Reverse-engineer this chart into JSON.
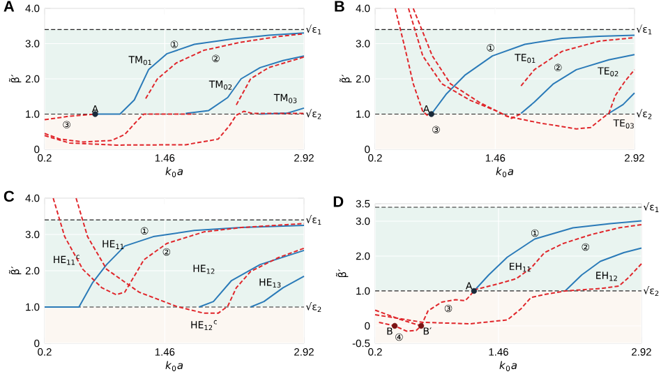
{
  "chart_data": [
    {
      "type": "line",
      "title": "A",
      "xlabel": "*k*$_{0}$*a*",
      "ylabel": "β̃′",
      "xlim": [
        0.2,
        2.92
      ],
      "ylim": [
        0,
        4
      ],
      "xticks": [
        0.2,
        1.46,
        2.92
      ],
      "yticks": [
        0,
        {
          "value": 1,
          "label": "1.0"
        },
        {
          "value": 2,
          "label": "2.0"
        },
        {
          "value": 3,
          "label": "3.0"
        },
        {
          "value": 4,
          "label": "4.0"
        }
      ],
      "grid": true,
      "bands": [
        {
          "axis": "y",
          "from": 0,
          "to": 1,
          "color": "#fcf7f2"
        },
        {
          "axis": "y",
          "from": 1,
          "to": 3.4,
          "color": "#e9f4f0"
        }
      ],
      "ref_lines": [
        {
          "axis": "y",
          "value": 3.4,
          "label": "√ε$_{1}$",
          "line_style": "dashed",
          "color": "#222222"
        },
        {
          "axis": "y",
          "value": 1,
          "label": "√ε$_{2}$",
          "line_style": "dashed",
          "color": "#222222"
        }
      ],
      "series": [
        {
          "color": "#2a7ab8",
          "line_style": "solid",
          "x": [
            0.73,
            0.99,
            1.14,
            1.29,
            1.48,
            1.77,
            2.16,
            2.55,
            2.92
          ],
          "values": [
            1.0,
            1.0,
            1.4,
            2.26,
            2.71,
            2.98,
            3.13,
            3.24,
            3.3
          ]
        },
        {
          "color": "#2a7ab8",
          "line_style": "solid",
          "x": [
            1.68,
            1.92,
            2.12,
            2.26,
            2.46,
            2.7,
            2.92
          ],
          "values": [
            1.02,
            1.1,
            1.47,
            2.0,
            2.32,
            2.52,
            2.65
          ]
        },
        {
          "color": "#2a7ab8",
          "line_style": "solid",
          "x": [
            2.46,
            2.75,
            2.92
          ],
          "values": [
            1.0,
            1.03,
            1.17
          ]
        },
        {
          "color": "#e0262b",
          "line_style": "dashed",
          "x": [
            1.26,
            1.38,
            1.58,
            1.87,
            2.26,
            2.65,
            2.92
          ],
          "values": [
            1.44,
            1.99,
            2.45,
            2.81,
            3.04,
            3.2,
            3.28
          ]
        },
        {
          "color": "#e0262b",
          "line_style": "dashed",
          "x": [
            2.21,
            2.36,
            2.55,
            2.92
          ],
          "values": [
            1.26,
            2.0,
            2.32,
            2.62
          ]
        },
        {
          "color": "#e0262b",
          "line_style": "dashed",
          "x": [
            0.2,
            0.46,
            0.73
          ],
          "values": [
            0.84,
            0.94,
            1.0
          ]
        },
        {
          "color": "#e0262b",
          "line_style": "dashed",
          "x": [
            0.2,
            0.36,
            0.6,
            0.9,
            1.04,
            1.17,
            1.24,
            1.77
          ],
          "values": [
            0.45,
            0.29,
            0.21,
            0.25,
            0.42,
            0.81,
            1.0,
            1.0
          ]
        },
        {
          "color": "#e0262b",
          "line_style": "dashed",
          "x": [
            0.2,
            0.46,
            0.95,
            1.68,
            2.02,
            2.14,
            2.21,
            2.29,
            2.38,
            2.92
          ],
          "values": [
            0.39,
            0.18,
            0.12,
            0.13,
            0.29,
            0.68,
            0.97,
            1.08,
            1.02,
            1.02
          ]
        },
        {
          "type": "scatter",
          "marker": "circle",
          "color": "#1a2a3a",
          "x": [
            0.73
          ],
          "values": [
            1.0
          ]
        }
      ],
      "annotations": [
        {
          "text": "A",
          "x": 0.73,
          "y": 1.0
        },
        "①",
        "②",
        "③",
        "TM$_{01}$",
        "TM$_{02}$",
        "TM$_{03}$"
      ]
    },
    {
      "type": "line",
      "title": "B",
      "xlabel": "*k*$_{0}$*a*",
      "ylabel": "β̃′",
      "xlim": [
        0.2,
        2.92
      ],
      "ylim": [
        0,
        4
      ],
      "xticks": [
        0.2,
        1.46,
        2.92
      ],
      "yticks": [
        0,
        {
          "value": 1,
          "label": "1.0"
        },
        {
          "value": 2,
          "label": "2.0"
        },
        {
          "value": 3,
          "label": "3.0"
        },
        {
          "value": 4,
          "label": "4.0"
        }
      ],
      "grid": true,
      "bands": [
        {
          "axis": "y",
          "from": 0,
          "to": 1,
          "color": "#fcf7f2"
        },
        {
          "axis": "y",
          "from": 1,
          "to": 3.4,
          "color": "#e9f4f0"
        }
      ],
      "ref_lines": [
        {
          "axis": "y",
          "value": 3.4,
          "label": "√ε$_{1}$",
          "line_style": "dashed",
          "color": "#222222"
        },
        {
          "axis": "y",
          "value": 1,
          "label": "√ε$_{2}$",
          "line_style": "dashed",
          "color": "#222222"
        }
      ],
      "series": [
        {
          "color": "#2a7ab8",
          "line_style": "solid",
          "x": [
            0.79,
            0.95,
            1.14,
            1.43,
            1.77,
            2.16,
            2.55,
            2.92
          ],
          "values": [
            1.0,
            1.58,
            2.1,
            2.65,
            2.98,
            3.15,
            3.21,
            3.24
          ]
        },
        {
          "color": "#2a7ab8",
          "line_style": "solid",
          "x": [
            1.73,
            1.87,
            2.07,
            2.31,
            2.65,
            2.92
          ],
          "values": [
            1.02,
            1.34,
            1.86,
            2.26,
            2.54,
            2.69
          ]
        },
        {
          "color": "#2a7ab8",
          "line_style": "solid",
          "x": [
            2.65,
            2.8,
            2.92
          ],
          "values": [
            1.02,
            1.27,
            1.6
          ]
        },
        {
          "color": "#e0262b",
          "line_style": "dashed",
          "x": [
            1.73,
            1.87,
            2.16,
            2.55,
            2.92
          ],
          "values": [
            1.8,
            2.26,
            2.78,
            3.07,
            3.17
          ]
        },
        {
          "color": "#e0262b",
          "line_style": "dashed",
          "x": [
            2.65,
            2.72,
            2.82,
            2.92
          ],
          "values": [
            1.01,
            1.53,
            1.93,
            2.26
          ]
        },
        {
          "color": "#e0262b",
          "line_style": "dashed",
          "x": [
            0.41,
            0.51,
            0.6,
            0.7,
            0.76,
            0.79
          ],
          "values": [
            4.0,
            2.91,
            1.86,
            1.07,
            0.94,
            1.0
          ]
        },
        {
          "color": "#e0262b",
          "line_style": "dashed",
          "x": [
            0.55,
            0.7,
            0.9,
            1.19,
            1.48,
            1.63,
            1.73
          ],
          "values": [
            4.0,
            2.65,
            1.86,
            1.4,
            1.08,
            0.88,
            1.01
          ]
        },
        {
          "color": "#e0262b",
          "line_style": "dashed",
          "x": [
            0.6,
            0.8,
            0.99,
            1.29,
            1.58,
            1.92,
            2.31,
            2.46,
            2.58,
            2.65
          ],
          "values": [
            4.0,
            2.65,
            1.86,
            1.34,
            0.94,
            0.75,
            0.58,
            0.62,
            0.88,
            1.02
          ]
        },
        {
          "type": "scatter",
          "marker": "circle",
          "color": "#1a2a3a",
          "x": [
            0.79
          ],
          "values": [
            1.0
          ]
        }
      ],
      "annotations": [
        {
          "text": "A",
          "x": 0.79,
          "y": 1.0
        },
        "①",
        "②",
        "③",
        "TE$_{01}$",
        "TE$_{02}$",
        "TE$_{03}$"
      ]
    },
    {
      "type": "line",
      "title": "C",
      "xlabel": "*k*$_{0}$*a*",
      "ylabel": "β̃′",
      "xlim": [
        0.2,
        2.92
      ],
      "ylim": [
        0,
        4
      ],
      "xticks": [
        0.2,
        1.46,
        2.92
      ],
      "yticks": [
        0,
        {
          "value": 1,
          "label": "1.0"
        },
        {
          "value": 2,
          "label": "2.0"
        },
        {
          "value": 3,
          "label": "3.0"
        },
        {
          "value": 4,
          "label": "4.0"
        }
      ],
      "grid": true,
      "bands": [
        {
          "axis": "y",
          "from": 0,
          "to": 1,
          "color": "#fcf7f2"
        },
        {
          "axis": "y",
          "from": 1,
          "to": 3.4,
          "color": "#e9f4f0"
        }
      ],
      "ref_lines": [
        {
          "axis": "y",
          "value": 3.4,
          "label": "√ε$_{1}$",
          "line_style": "dashed",
          "color": "#222222"
        },
        {
          "axis": "y",
          "value": 1,
          "label": "√ε$_{2}$",
          "line_style": "dashed",
          "color": "#222222"
        }
      ],
      "series": [
        {
          "color": "#2a7ab8",
          "line_style": "solid",
          "x": [
            0.2,
            0.56,
            0.7,
            0.85,
            1.04,
            1.34,
            1.77,
            2.26,
            2.92
          ],
          "values": [
            1.0,
            1.0,
            1.66,
            2.17,
            2.68,
            2.94,
            3.11,
            3.19,
            3.25
          ]
        },
        {
          "color": "#2a7ab8",
          "line_style": "solid",
          "x": [
            1.82,
            1.97,
            2.16,
            2.46,
            2.92
          ],
          "values": [
            1.0,
            1.15,
            1.73,
            2.17,
            2.56
          ]
        },
        {
          "color": "#2a7ab8",
          "line_style": "solid",
          "x": [
            2.36,
            2.5,
            2.7,
            2.92
          ],
          "values": [
            1.0,
            1.15,
            1.53,
            1.85
          ]
        },
        {
          "color": "#e0262b",
          "line_style": "dashed",
          "x": [
            0.29,
            0.41,
            0.6,
            0.8,
            0.95,
            1.04,
            1.14,
            1.24,
            1.48,
            1.87,
            2.26,
            2.92
          ],
          "values": [
            4.0,
            2.94,
            2.04,
            1.53,
            1.34,
            1.41,
            1.85,
            2.3,
            2.75,
            3.07,
            3.19,
            3.3
          ]
        },
        {
          "color": "#e0262b",
          "line_style": "dashed",
          "x": [
            0.53,
            0.65,
            0.85,
            1.19,
            1.58,
            1.87,
            2.02,
            2.12,
            2.21,
            2.36,
            2.65,
            2.92
          ],
          "values": [
            4.0,
            2.94,
            2.04,
            1.41,
            1.02,
            0.83,
            0.83,
            1.02,
            1.53,
            1.98,
            2.36,
            2.62
          ]
        }
      ],
      "annotations": [
        "①",
        "②",
        "HE$_{11}$$^{c}$",
        "HE$_{11}$",
        "HE$_{12}$",
        "HE$_{12}$$^{c}$",
        "HE$_{13}$"
      ]
    },
    {
      "type": "line",
      "title": "D",
      "xlabel": "*k*$_{0}$*a*",
      "ylabel": "β̃′",
      "xlim": [
        0.2,
        2.92
      ],
      "ylim": [
        -0.5,
        3.5
      ],
      "xticks": [
        0.2,
        1.46,
        2.92
      ],
      "yticks": [
        -0.5,
        0,
        {
          "value": 1,
          "label": "1.0"
        },
        {
          "value": 2,
          "label": "2.0"
        },
        {
          "value": 3,
          "label": "3.0"
        },
        3.5
      ],
      "grid": true,
      "bands": [
        {
          "axis": "y",
          "from": -0.5,
          "to": 1,
          "color": "#fcf7f2"
        },
        {
          "axis": "y",
          "from": 1,
          "to": 3.4,
          "color": "#e9f4f0"
        }
      ],
      "ref_lines": [
        {
          "axis": "y",
          "value": 3.4,
          "label": "√ε$_{1}$",
          "line_style": "dashed",
          "color": "#222222"
        },
        {
          "axis": "y",
          "value": 1,
          "label": "√ε$_{2}$",
          "line_style": "dashed",
          "color": "#222222"
        }
      ],
      "series": [
        {
          "color": "#2a7ab8",
          "line_style": "solid",
          "x": [
            1.21,
            1.36,
            1.55,
            1.83,
            2.22,
            2.6,
            2.92
          ],
          "values": [
            1.0,
            1.46,
            1.97,
            2.49,
            2.81,
            2.93,
            3.01
          ]
        },
        {
          "color": "#2a7ab8",
          "line_style": "solid",
          "x": [
            2.14,
            2.31,
            2.5,
            2.74,
            2.92
          ],
          "values": [
            1.0,
            1.46,
            1.85,
            2.1,
            2.23
          ]
        },
        {
          "color": "#e0262b",
          "line_style": "dashed",
          "x": [
            1.21,
            1.45,
            1.64,
            1.79,
            1.93,
            2.12,
            2.41,
            2.69,
            2.92
          ],
          "values": [
            1.03,
            1.2,
            1.35,
            1.65,
            2.1,
            2.36,
            2.62,
            2.81,
            2.9
          ]
        },
        {
          "color": "#e0262b",
          "line_style": "dashed",
          "x": [
            0.2,
            0.69,
            1.17,
            1.55,
            1.69,
            1.79,
            1.93,
            2.14,
            2.5,
            2.69,
            2.79,
            2.92
          ],
          "values": [
            0.32,
            0.1,
            0.06,
            0.17,
            0.49,
            0.81,
            0.9,
            1.0,
            1.07,
            1.14,
            1.39,
            1.78
          ]
        },
        {
          "color": "#e0262b",
          "line_style": "dashed",
          "x": [
            0.67,
            0.74,
            0.88,
            1.02,
            1.12,
            1.17,
            1.21
          ],
          "values": [
            0.0,
            0.43,
            0.68,
            0.75,
            0.72,
            0.87,
            1.0
          ]
        },
        {
          "color": "#e0262b",
          "line_style": "dashed",
          "x": [
            0.2,
            0.45,
            0.67
          ],
          "values": [
            0.45,
            0.19,
            0.0
          ]
        },
        {
          "color": "#e0262b",
          "line_style": "dashed",
          "x": [
            0.24,
            0.4,
            0.52,
            0.62,
            0.67
          ],
          "values": [
            0.1,
            0.0,
            -0.15,
            -0.13,
            0.0
          ]
        },
        {
          "type": "scatter",
          "marker": "circle",
          "color": "#1a2a3a",
          "x": [
            1.21
          ],
          "values": [
            1.0
          ]
        },
        {
          "type": "scatter",
          "marker": "circle",
          "color": "#7a1414",
          "x": [
            0.4,
            0.67
          ],
          "values": [
            0.0,
            0.0
          ]
        }
      ],
      "annotations": [
        {
          "text": "A",
          "x": 1.21,
          "y": 1.0
        },
        {
          "text": "B",
          "x": 0.4,
          "y": 0.0
        },
        {
          "text": "B′",
          "x": 0.67,
          "y": 0.0
        },
        "①",
        "②",
        "③",
        "④",
        "EH$_{11}$",
        "EH$_{12}$"
      ]
    }
  ]
}
